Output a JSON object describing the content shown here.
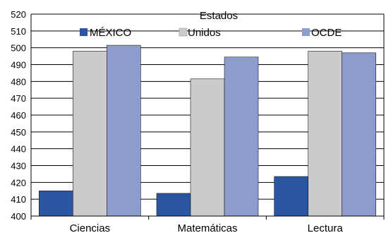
{
  "chart_data": {
    "type": "bar",
    "categories": [
      "Ciencias",
      "Matemáticas",
      "Lectura"
    ],
    "series": [
      {
        "name": "MÉXICO",
        "values": [
          415,
          413.5,
          423.5
        ],
        "color": "#2a55a0"
      },
      {
        "name": "Estados Unidos",
        "values": [
          498,
          481.5,
          498
        ],
        "color": "#cbcbcb"
      },
      {
        "name": "OCDE",
        "values": [
          501.5,
          494.5,
          497
        ],
        "color": "#8c9ccc"
      }
    ],
    "legend": {
      "label_top": "Estados",
      "labels": [
        "MÉXICO",
        "Unidos",
        "OCDE"
      ],
      "placement": "top"
    },
    "yticks": [
      400,
      410,
      420,
      430,
      440,
      450,
      460,
      470,
      480,
      490,
      500,
      510,
      520
    ],
    "ylim": [
      400,
      520
    ],
    "grid": true,
    "title": "",
    "xlabel": "",
    "ylabel": ""
  }
}
